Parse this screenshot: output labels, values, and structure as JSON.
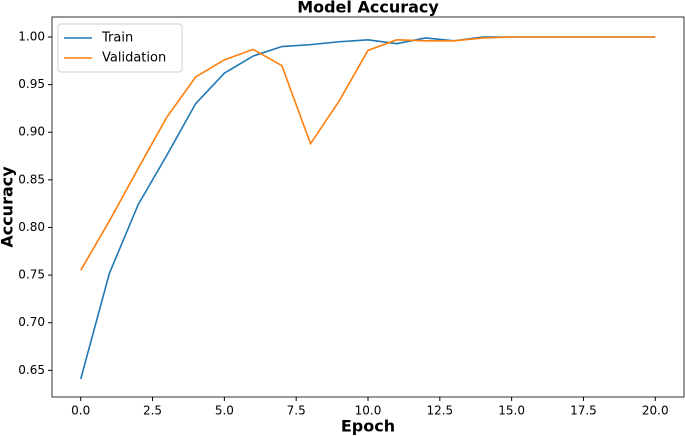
{
  "chart_data": {
    "type": "line",
    "title": "Model Accuracy",
    "x_label": "Epoch",
    "y_label": "Accuracy",
    "x": [
      0,
      1,
      2,
      3,
      4,
      5,
      6,
      7,
      8,
      9,
      10,
      11,
      12,
      13,
      14,
      15,
      16,
      17,
      18,
      19,
      20
    ],
    "series": [
      {
        "name": "Train",
        "color": "#1f77b4",
        "values": [
          0.641,
          0.752,
          0.824,
          0.876,
          0.93,
          0.962,
          0.98,
          0.99,
          0.992,
          0.995,
          0.997,
          0.993,
          0.999,
          0.996,
          1.0,
          1.0,
          1.0,
          1.0,
          1.0,
          1.0,
          1.0
        ]
      },
      {
        "name": "Validation",
        "color": "#ff7f0e",
        "values": [
          0.755,
          0.807,
          0.862,
          0.916,
          0.958,
          0.976,
          0.987,
          0.97,
          0.888,
          0.933,
          0.986,
          0.997,
          0.996,
          0.996,
          0.999,
          1.0,
          1.0,
          1.0,
          1.0,
          1.0,
          1.0
        ]
      }
    ],
    "xlim": [
      -1,
      21
    ],
    "ylim": [
      0.622,
      1.021
    ],
    "xticks": [
      {
        "value": 0,
        "label": "0.0"
      },
      2.5,
      {
        "value": 5,
        "label": "5.0"
      },
      7.5,
      {
        "value": 10,
        "label": "10.0"
      },
      12.5,
      {
        "value": 15,
        "label": "15.0"
      },
      17.5,
      {
        "value": 20,
        "label": "20.0"
      }
    ],
    "yticks": [
      0.65,
      {
        "value": 0.7,
        "label": "0.70"
      },
      0.75,
      {
        "value": 0.8,
        "label": "0.80"
      },
      0.85,
      {
        "value": 0.9,
        "label": "0.90"
      },
      0.95,
      {
        "value": 1,
        "label": "1.00"
      }
    ],
    "legend": "upper left",
    "grid": false
  }
}
